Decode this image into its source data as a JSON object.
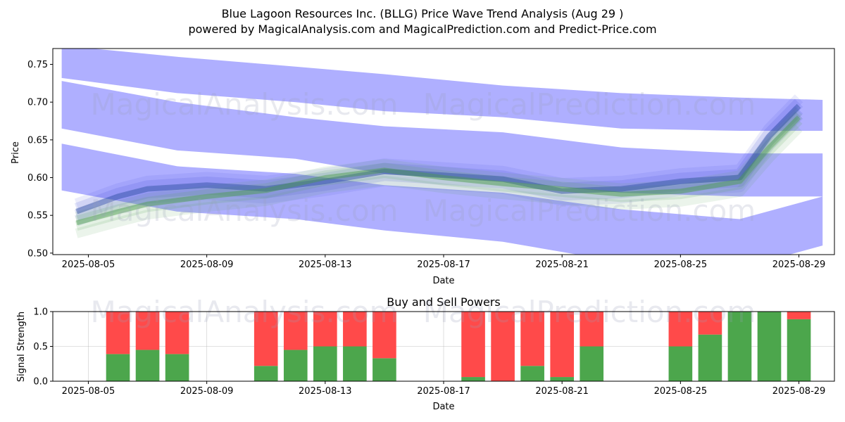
{
  "header": {
    "title": "Blue Lagoon Resources Inc. (BLLG) Price Wave Trend Analysis (Aug 29 )",
    "subtitle": "powered by MagicalAnalysis.com and MagicalPrediction.com and Predict-Price.com"
  },
  "watermarks": [
    "MagicalAnalysis.com",
    "MagicalPrediction.com"
  ],
  "chart_data": [
    {
      "type": "area",
      "title": "",
      "xlabel": "Date",
      "ylabel": "Price",
      "ylim": [
        0.498,
        0.771
      ],
      "xlim": [
        -1.2,
        25.2
      ],
      "x_origin": "2025-08-05",
      "x_ticks": [
        0,
        4,
        8,
        12,
        16,
        20,
        24
      ],
      "x_tick_labels": [
        "2025-08-05",
        "2025-08-09",
        "2025-08-13",
        "2025-08-17",
        "2025-08-21",
        "2025-08-25",
        "2025-08-29"
      ],
      "y_ticks": [
        0.5,
        0.55,
        0.6,
        0.65,
        0.7,
        0.75
      ],
      "y_tick_labels": [
        "0.50",
        "0.55",
        "0.60",
        "0.65",
        "0.70",
        "0.75"
      ],
      "bands": [
        {
          "name": "upper wave",
          "x": [
            -0.9,
            3,
            7,
            10,
            14,
            18,
            22,
            24.8
          ],
          "upper": [
            0.775,
            0.76,
            0.747,
            0.737,
            0.722,
            0.712,
            0.706,
            0.703
          ],
          "lower": [
            0.732,
            0.712,
            0.7,
            0.688,
            0.68,
            0.665,
            0.662,
            0.662
          ]
        },
        {
          "name": "middle wave",
          "x": [
            -0.9,
            3,
            7,
            10,
            14,
            18,
            22,
            24.8
          ],
          "upper": [
            0.728,
            0.7,
            0.68,
            0.668,
            0.66,
            0.64,
            0.632,
            0.632
          ],
          "lower": [
            0.665,
            0.636,
            0.625,
            0.605,
            0.595,
            0.58,
            0.575,
            0.575
          ]
        },
        {
          "name": "lower wave",
          "x": [
            -0.9,
            3,
            7,
            10,
            14,
            18,
            22,
            24.8
          ],
          "upper": [
            0.645,
            0.615,
            0.605,
            0.59,
            0.58,
            0.558,
            0.545,
            0.575
          ]
        },
        {
          "name": "lower wave bottom",
          "x": [
            -0.9,
            3,
            7,
            10,
            14,
            18,
            22,
            24.8
          ],
          "lower": [
            0.583,
            0.555,
            0.545,
            0.53,
            0.515,
            0.488,
            0.48,
            0.51
          ]
        }
      ],
      "series": [
        {
          "name": "blue trend",
          "x": [
            -0.4,
            1,
            2,
            4,
            6,
            8,
            10,
            12,
            14,
            16,
            18,
            20,
            22,
            23,
            24
          ],
          "values": [
            0.555,
            0.575,
            0.585,
            0.59,
            0.585,
            0.595,
            0.608,
            0.603,
            0.598,
            0.582,
            0.585,
            0.595,
            0.6,
            0.655,
            0.695
          ]
        },
        {
          "name": "green trend",
          "x": [
            -0.4,
            1,
            2,
            4,
            6,
            8,
            10,
            12,
            14,
            16,
            18,
            20,
            22,
            23,
            24
          ],
          "values": [
            0.54,
            0.555,
            0.565,
            0.575,
            0.583,
            0.6,
            0.61,
            0.6,
            0.592,
            0.585,
            0.578,
            0.582,
            0.595,
            0.64,
            0.68
          ]
        }
      ]
    },
    {
      "type": "bar",
      "title": "Buy and Sell Powers",
      "xlabel": "Date",
      "ylabel": "Signal Strength",
      "ylim": [
        0,
        1.0
      ],
      "xlim": [
        -1.2,
        25.2
      ],
      "x_origin": "2025-08-05",
      "x_ticks": [
        0,
        4,
        8,
        12,
        16,
        20,
        24
      ],
      "x_tick_labels": [
        "2025-08-05",
        "2025-08-09",
        "2025-08-13",
        "2025-08-17",
        "2025-08-21",
        "2025-08-25",
        "2025-08-29"
      ],
      "y_ticks": [
        0.0,
        0.5,
        1.0
      ],
      "y_tick_labels": [
        "0.0",
        "0.5",
        "1.0"
      ],
      "days": [
        1,
        2,
        3,
        6,
        7,
        8,
        9,
        10,
        13,
        14,
        15,
        16,
        17,
        20,
        21,
        22,
        23,
        24
      ],
      "series": [
        {
          "name": "Buy",
          "color": "#4ca64c",
          "values": [
            0.39,
            0.45,
            0.39,
            0.22,
            0.45,
            0.5,
            0.5,
            0.33,
            0.06,
            0.0,
            0.22,
            0.06,
            0.5,
            0.5,
            0.67,
            1.0,
            1.0,
            0.89
          ]
        },
        {
          "name": "Sell",
          "color": "#ff4a4a",
          "values": [
            0.61,
            0.55,
            0.61,
            0.78,
            0.55,
            0.5,
            0.5,
            0.67,
            0.94,
            1.0,
            0.78,
            0.94,
            0.5,
            0.5,
            0.33,
            0.0,
            0.0,
            0.11
          ]
        }
      ]
    }
  ]
}
